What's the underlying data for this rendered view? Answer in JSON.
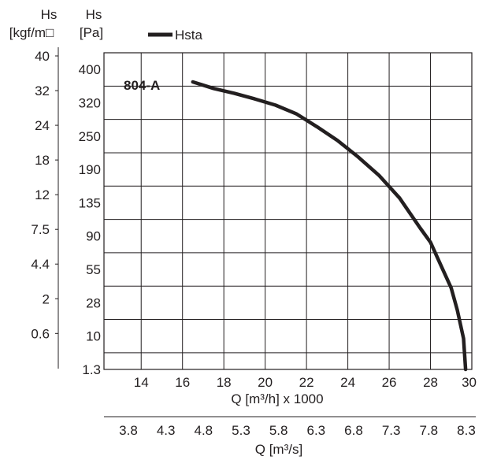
{
  "chart_data": {
    "type": "line",
    "legend": {
      "label": "Hsta",
      "position": "top-left"
    },
    "series": [
      {
        "name": "804-A",
        "line_label": "804-A",
        "x": [
          16.5,
          17.5,
          18.5,
          19.5,
          20.5,
          21.5,
          22.5,
          23.5,
          24.5,
          25.5,
          26.5,
          27.5,
          28.0,
          28.5,
          29.0,
          29.3,
          29.6,
          29.7
        ],
        "y": [
          330,
          315,
          305,
          293,
          280,
          262,
          237,
          212,
          183,
          153,
          119,
          81,
          66,
          45,
          27,
          15,
          5,
          0
        ]
      }
    ],
    "x_axis": {
      "label": "Q [m³/h] x 1000",
      "range": [
        12.2,
        30
      ],
      "ticks": [
        14,
        16,
        18,
        20,
        22,
        24,
        26,
        28,
        30
      ],
      "tick_labels": [
        "14",
        "16",
        "18",
        "20",
        "22",
        "24",
        "26",
        "28",
        "30"
      ]
    },
    "x2_axis": {
      "label": "Q [m³/s]",
      "tick_labels": [
        "3.8",
        "4.3",
        "4.8",
        "5.3",
        "5.8",
        "6.3",
        "6.8",
        "7.3",
        "7.8",
        "8.3"
      ]
    },
    "y_axis": {
      "title": "Hs",
      "unit": "[Pa]",
      "tick_labels": [
        "400",
        "320",
        "250",
        "190",
        "135",
        "90",
        "55",
        "28",
        "10",
        "1.3"
      ]
    },
    "y2_axis": {
      "title": "Hs",
      "unit": "[kgf/m□",
      "tick_labels": [
        "40",
        "32",
        "24",
        "18",
        "12",
        "7.5",
        "4.4",
        "2",
        "0.6"
      ]
    },
    "grid": true,
    "colors": {
      "curve": "#231f20",
      "grid": "#231f20",
      "background": "#ffffff"
    }
  }
}
